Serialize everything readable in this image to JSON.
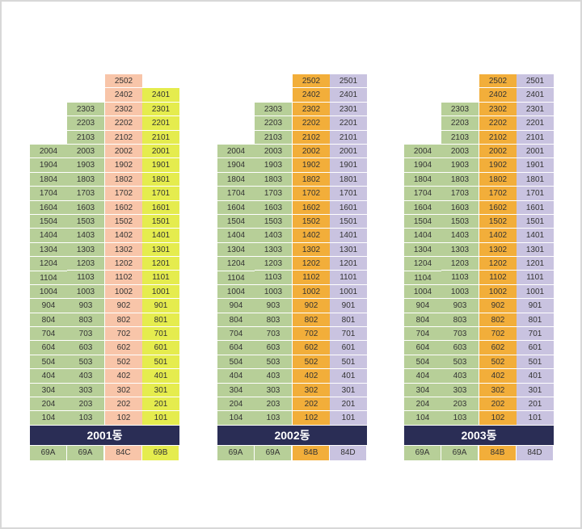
{
  "colors": {
    "green": "#b7cf98",
    "pink": "#f8c5a9",
    "yellow": "#e5ec4e",
    "orange": "#f2ae3a",
    "lavender": "#c9c3e0",
    "banner": "#2a2d55"
  },
  "buildings": [
    {
      "name": "2001동",
      "columns": [
        {
          "color": "green",
          "type": "69A",
          "units": [
            "2004",
            "1904",
            "1804",
            "1704",
            "1604",
            "1504",
            "1404",
            "1304",
            "1204",
            "1104",
            "1004",
            "904",
            "804",
            "704",
            "604",
            "504",
            "404",
            "304",
            "204",
            "104"
          ]
        },
        {
          "color": "green",
          "type": "69A",
          "units": [
            "2303",
            "2203",
            "2103",
            "2003",
            "1903",
            "1803",
            "1703",
            "1603",
            "1503",
            "1403",
            "1303",
            "1203",
            "1103",
            "1003",
            "903",
            "803",
            "703",
            "603",
            "503",
            "403",
            "303",
            "203",
            "103"
          ]
        },
        {
          "color": "pink",
          "type": "84C",
          "units": [
            "2502",
            "2402",
            "2302",
            "2202",
            "2102",
            "2002",
            "1902",
            "1802",
            "1702",
            "1602",
            "1502",
            "1402",
            "1302",
            "1202",
            "1102",
            "1002",
            "902",
            "802",
            "702",
            "602",
            "502",
            "402",
            "302",
            "202",
            "102"
          ]
        },
        {
          "color": "yellow",
          "type": "69B",
          "units": [
            "2401",
            "2301",
            "2201",
            "2101",
            "2001",
            "1901",
            "1801",
            "1701",
            "1601",
            "1501",
            "1401",
            "1301",
            "1201",
            "1101",
            "1001",
            "901",
            "801",
            "701",
            "601",
            "501",
            "401",
            "301",
            "201",
            "101"
          ]
        }
      ]
    },
    {
      "name": "2002동",
      "columns": [
        {
          "color": "green",
          "type": "69A",
          "units": [
            "2004",
            "1904",
            "1804",
            "1704",
            "1604",
            "1504",
            "1404",
            "1304",
            "1204",
            "1104",
            "1004",
            "904",
            "804",
            "704",
            "604",
            "504",
            "404",
            "304",
            "204",
            "104"
          ]
        },
        {
          "color": "green",
          "type": "69A",
          "units": [
            "2303",
            "2203",
            "2103",
            "2003",
            "1903",
            "1803",
            "1703",
            "1603",
            "1503",
            "1403",
            "1303",
            "1203",
            "1103",
            "1003",
            "903",
            "803",
            "703",
            "603",
            "503",
            "403",
            "303",
            "203",
            "103"
          ]
        },
        {
          "color": "orange",
          "type": "84B",
          "units": [
            "2502",
            "2402",
            "2302",
            "2202",
            "2102",
            "2002",
            "1902",
            "1802",
            "1702",
            "1602",
            "1502",
            "1402",
            "1302",
            "1202",
            "1102",
            "1002",
            "902",
            "802",
            "702",
            "602",
            "502",
            "402",
            "302",
            "202",
            "102"
          ]
        },
        {
          "color": "lavender",
          "type": "84D",
          "units": [
            "2501",
            "2401",
            "2301",
            "2201",
            "2101",
            "2001",
            "1901",
            "1801",
            "1701",
            "1601",
            "1501",
            "1401",
            "1301",
            "1201",
            "1101",
            "1001",
            "901",
            "801",
            "701",
            "601",
            "501",
            "401",
            "301",
            "201",
            "101"
          ]
        }
      ]
    },
    {
      "name": "2003동",
      "columns": [
        {
          "color": "green",
          "type": "69A",
          "units": [
            "2004",
            "1904",
            "1804",
            "1704",
            "1604",
            "1504",
            "1404",
            "1304",
            "1204",
            "1104",
            "1004",
            "904",
            "804",
            "704",
            "604",
            "504",
            "404",
            "304",
            "204",
            "104"
          ]
        },
        {
          "color": "green",
          "type": "69A",
          "units": [
            "2303",
            "2203",
            "2103",
            "2003",
            "1903",
            "1803",
            "1703",
            "1603",
            "1503",
            "1403",
            "1303",
            "1203",
            "1103",
            "1003",
            "903",
            "803",
            "703",
            "603",
            "503",
            "403",
            "303",
            "203",
            "103"
          ]
        },
        {
          "color": "orange",
          "type": "84B",
          "units": [
            "2502",
            "2402",
            "2302",
            "2202",
            "2102",
            "2002",
            "1902",
            "1802",
            "1702",
            "1602",
            "1502",
            "1402",
            "1302",
            "1202",
            "1102",
            "1002",
            "902",
            "802",
            "702",
            "602",
            "502",
            "402",
            "302",
            "202",
            "102"
          ]
        },
        {
          "color": "lavender",
          "type": "84D",
          "units": [
            "2501",
            "2401",
            "2301",
            "2201",
            "2101",
            "2001",
            "1901",
            "1801",
            "1701",
            "1601",
            "1501",
            "1401",
            "1301",
            "1201",
            "1101",
            "1001",
            "901",
            "801",
            "701",
            "601",
            "501",
            "401",
            "301",
            "201",
            "101"
          ]
        }
      ]
    }
  ]
}
